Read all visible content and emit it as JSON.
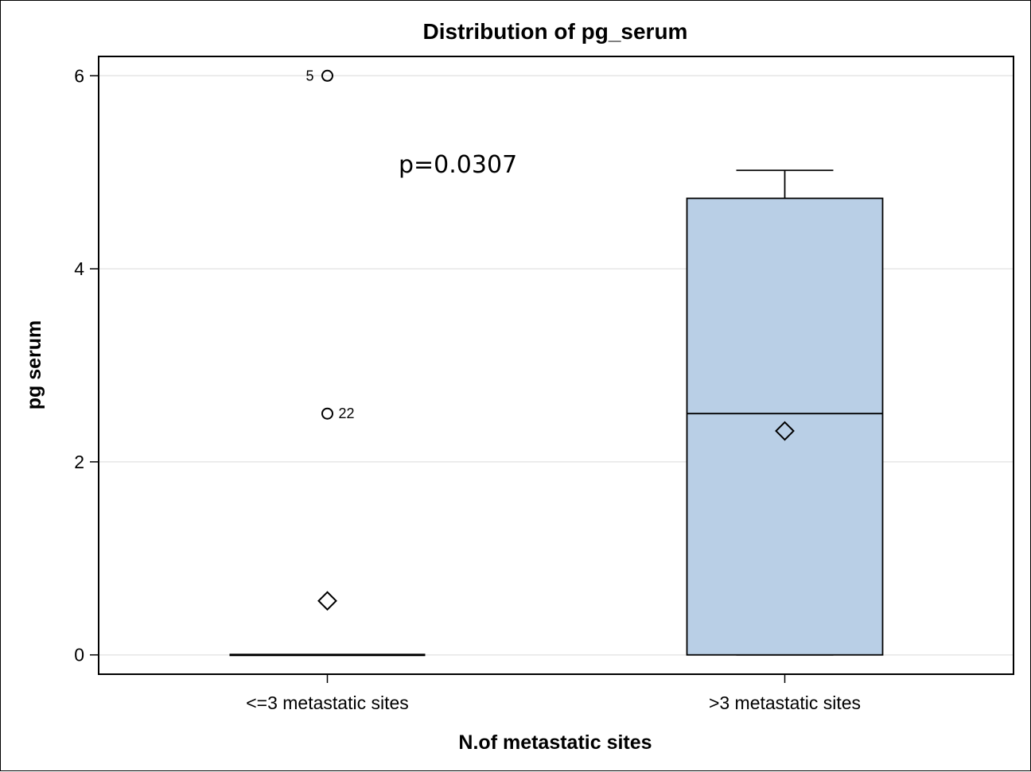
{
  "chart_data": {
    "type": "box",
    "title": "Distribution of pg_serum",
    "xlabel": "N.of metastatic sites",
    "ylabel": "pg serum",
    "ylim": [
      -0.2,
      6.2
    ],
    "yticks": [
      "0",
      "2",
      "4",
      "6"
    ],
    "grid": true,
    "annotation": "p=0.0307",
    "colors": {
      "box_fill": "#b9cfe6",
      "stroke": "#000000",
      "grid": "#e6e6e6"
    },
    "categories": [
      "<=3 metastatic sites",
      ">3 metastatic sites"
    ],
    "boxes": [
      {
        "category": "<=3 metastatic sites",
        "min": 0,
        "q1": 0,
        "median": 0,
        "q3": 0,
        "max": 0,
        "mean": 0.56,
        "outliers": [
          {
            "value": 6.0,
            "label": "5",
            "side": "left"
          },
          {
            "value": 2.5,
            "label": "22",
            "side": "right"
          }
        ]
      },
      {
        "category": ">3 metastatic sites",
        "min": 0,
        "q1": 0,
        "median": 2.5,
        "q3": 4.73,
        "max": 5.02,
        "mean": 2.32,
        "outliers": []
      }
    ]
  }
}
